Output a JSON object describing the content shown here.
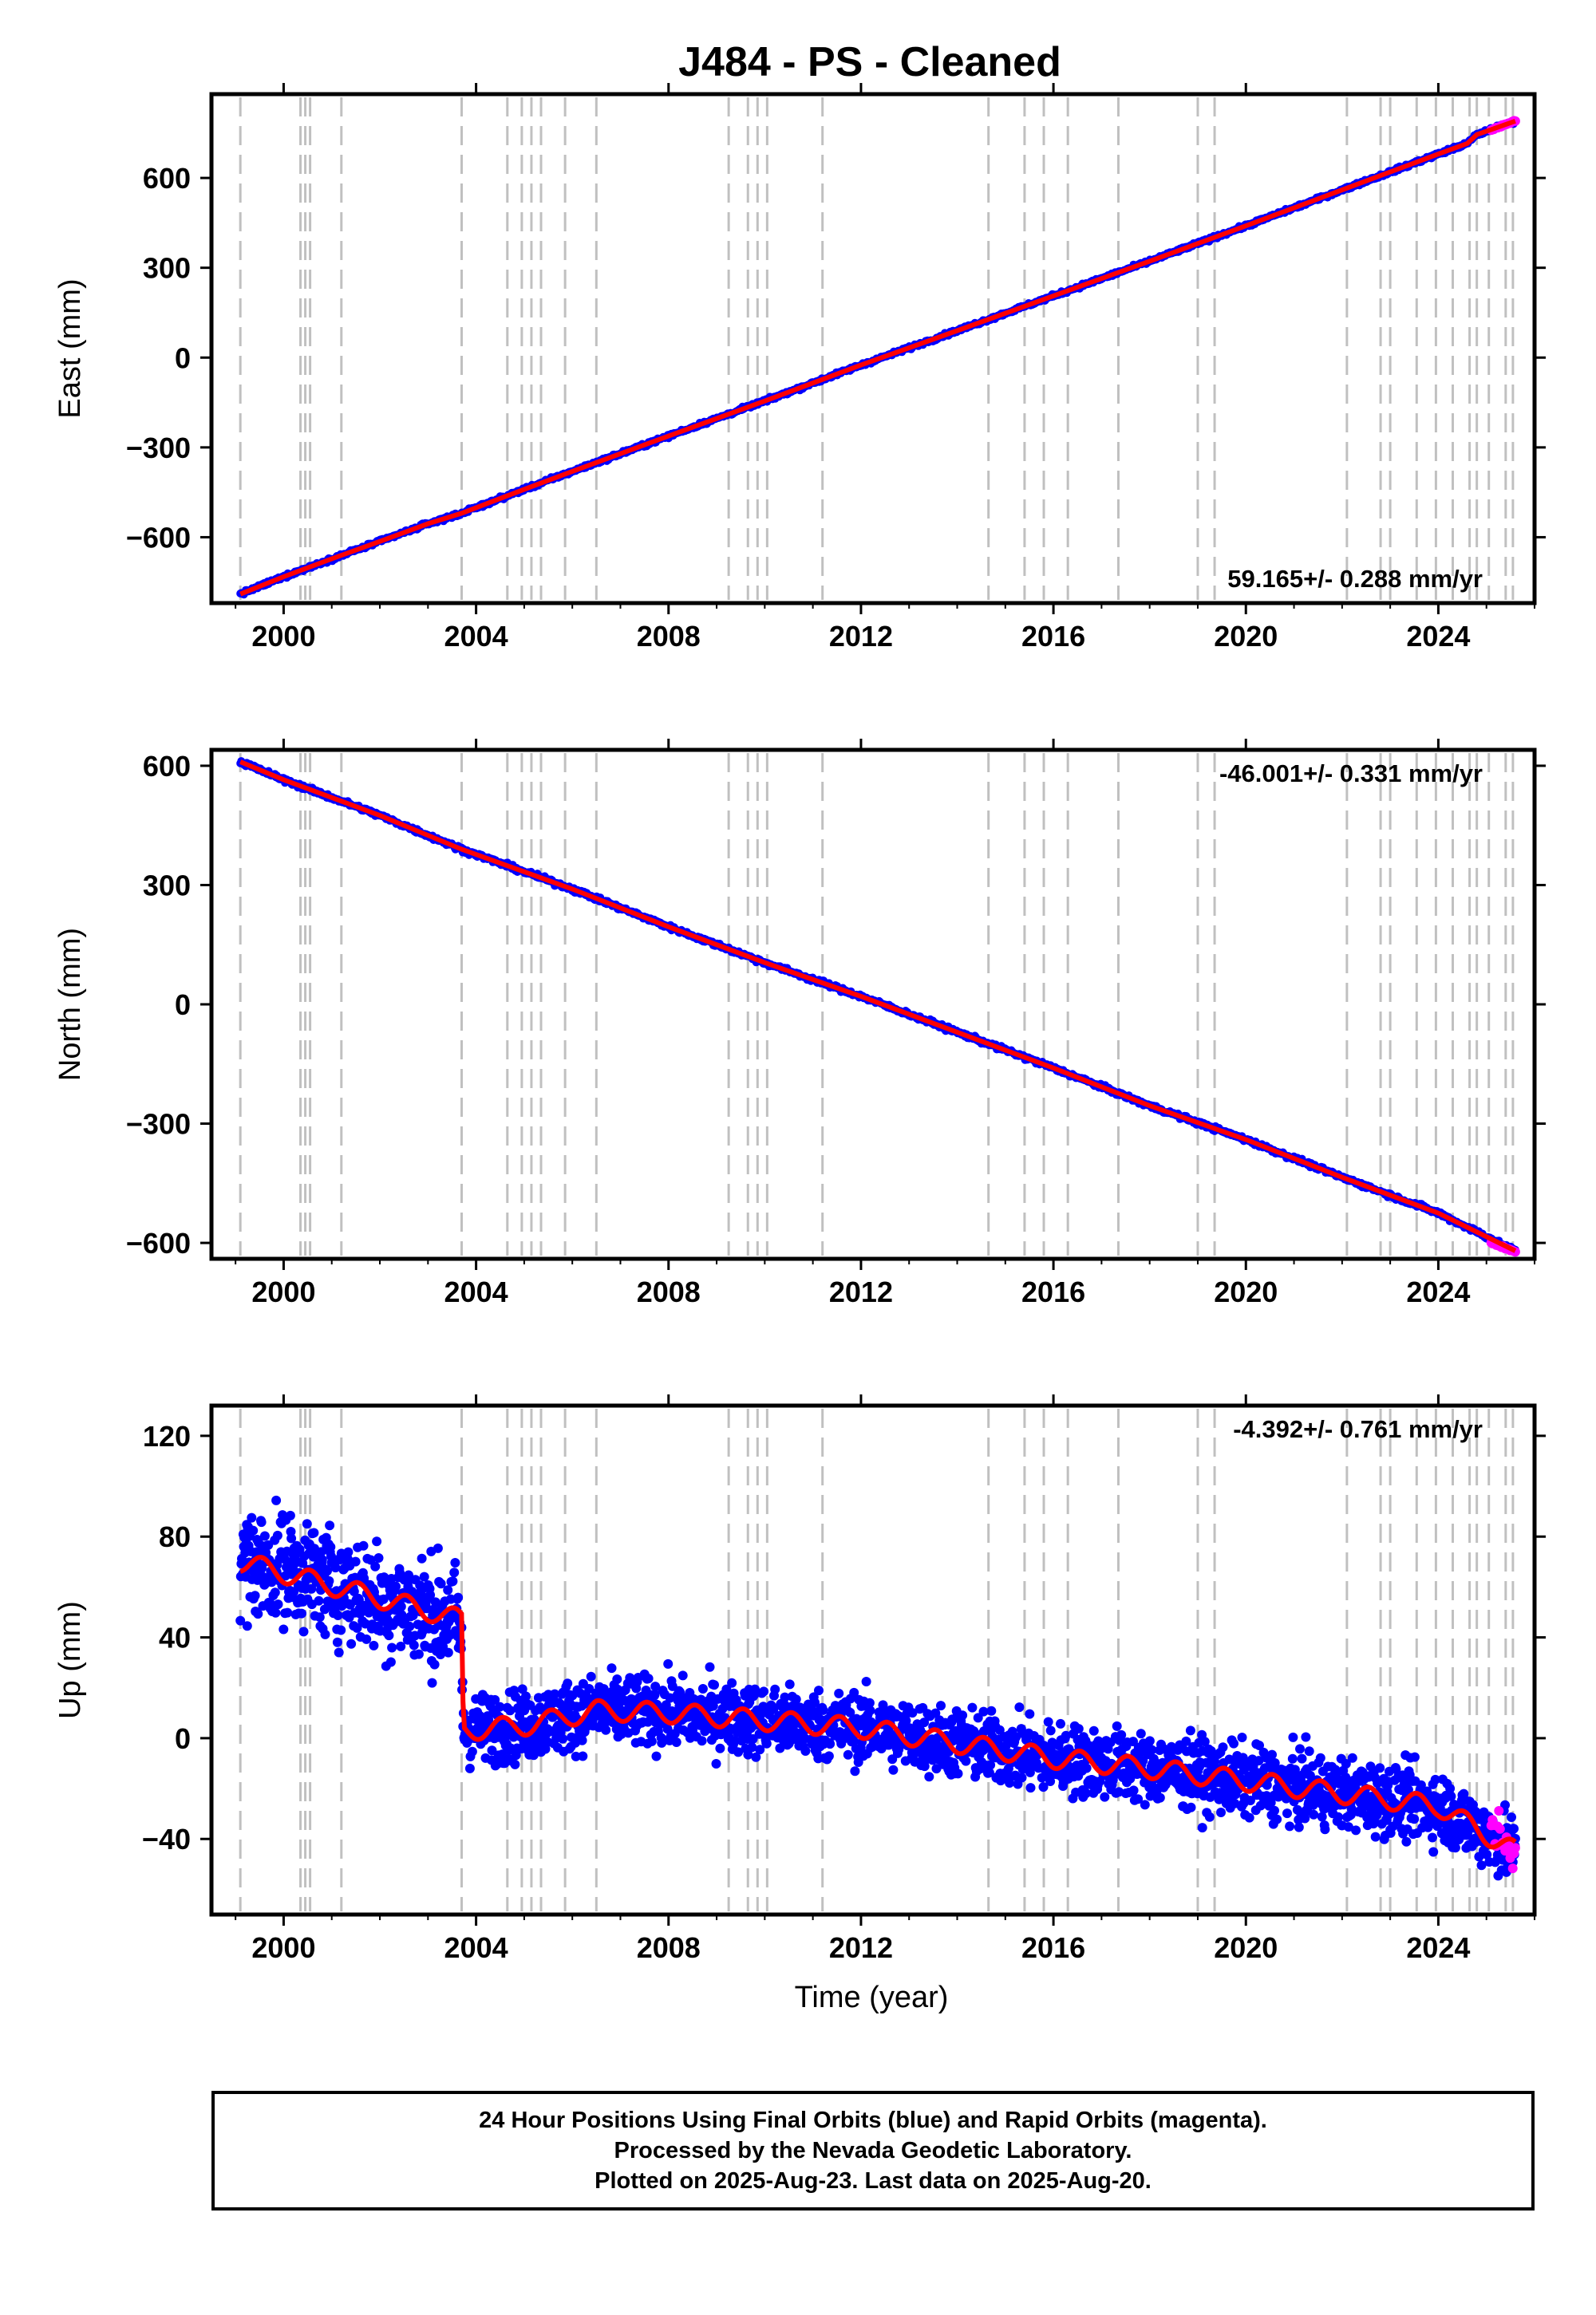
{
  "title": "J484  - PS - Cleaned",
  "xlabel": "Time (year)",
  "footer": {
    "line1": "24 Hour Positions Using Final Orbits (blue) and Rapid Orbits (magenta).",
    "line2": "Processed by the Nevada Geodetic Laboratory.",
    "line3": "Plotted on 2025-Aug-23. Last data on 2025-Aug-20."
  },
  "colors": {
    "final_orbits": "#0000ff",
    "rapid_orbits": "#ff00ff",
    "model": "#ff0000",
    "event_lines": "#c0c0c0",
    "axes": "#000000"
  },
  "chart_data": [
    {
      "type": "scatter",
      "ylabel": "East (mm)",
      "rate": "59.165+/- 0.288 mm/yr",
      "xlim": [
        1998.5,
        2026.0
      ],
      "ylim": [
        -820,
        880
      ],
      "x_ticks": [
        2000,
        2004,
        2008,
        2012,
        2016,
        2020,
        2024
      ],
      "y_ticks": [
        -600,
        -300,
        0,
        300,
        600
      ],
      "y_tick_labels": [
        "−600",
        "−300",
        "0",
        "300",
        "600"
      ],
      "series": [
        {
          "x": [
            1999.1,
            2000.0,
            2001.0,
            2002.0,
            2003.0,
            2003.7,
            2005.0,
            2006.0,
            2008.0,
            2010.0,
            2012.0,
            2014.0,
            2016.0,
            2018.0,
            2020.0,
            2022.0,
            2024.0,
            2024.6,
            2024.8,
            2025.6
          ],
          "y": [
            -790,
            -732,
            -672,
            -614,
            -555,
            -520,
            -440,
            -380,
            -262,
            -145,
            -25,
            90,
            206,
            322,
            440,
            560,
            680,
            715,
            745,
            790
          ]
        }
      ],
      "rapid_orbits": {
        "x": [
          2025.1,
          2025.6
        ],
        "y": [
          760,
          792
        ]
      }
    },
    {
      "type": "scatter",
      "ylabel": "North (mm)",
      "rate": "-46.001+/- 0.331 mm/yr",
      "xlim": [
        1998.5,
        2026.0
      ],
      "ylim": [
        -640,
        640
      ],
      "x_ticks": [
        2000,
        2004,
        2008,
        2012,
        2016,
        2020,
        2024
      ],
      "y_ticks": [
        -600,
        -300,
        0,
        300,
        600
      ],
      "y_tick_labels": [
        "−600",
        "−300",
        "0",
        "300",
        "600"
      ],
      "series": [
        {
          "x": [
            1999.1,
            2000.0,
            2002.0,
            2003.7,
            2006.0,
            2008.0,
            2010.0,
            2012.0,
            2014.0,
            2016.0,
            2018.0,
            2020.0,
            2022.0,
            2024.0,
            2025.6
          ],
          "y": [
            610,
            565,
            475,
            390,
            290,
            195,
            105,
            20,
            -70,
            -160,
            -255,
            -340,
            -435,
            -525,
            -620
          ]
        }
      ],
      "rapid_orbits": {
        "x": [
          2025.1,
          2025.6
        ],
        "y": [
          -600,
          -622
        ]
      }
    },
    {
      "type": "scatter",
      "ylabel": "Up (mm)",
      "rate": "-4.392+/- 0.761 mm/yr",
      "xlim": [
        1998.5,
        2026.0
      ],
      "ylim": [
        -70,
        132
      ],
      "x_ticks": [
        2000,
        2004,
        2008,
        2012,
        2016,
        2020,
        2024
      ],
      "y_ticks": [
        -40,
        0,
        40,
        80,
        120
      ],
      "y_tick_labels": [
        "−40",
        "0",
        "40",
        "80",
        "120"
      ],
      "series": [
        {
          "x": [
            1999.1,
            2000.0,
            2001.0,
            2002.0,
            2003.0,
            2003.65,
            2003.75,
            2005.0,
            2006.5,
            2008.0,
            2010.0,
            2012.0,
            2014.0,
            2016.0,
            2018.0,
            2020.0,
            2022.0,
            2024.0,
            2025.6
          ],
          "y": [
            70,
            68,
            62,
            55,
            50,
            47,
            3,
            5,
            11,
            10,
            7,
            4,
            -2,
            -8,
            -12,
            -17,
            -22,
            -27,
            -45
          ]
        }
      ],
      "model_steps": {
        "x": [
          1999.1,
          2000.5,
          2001.2,
          2003.7,
          2005.3,
          2006.4,
          2009.2,
          2014.5,
          2019.2,
          2024.6,
          2025.1,
          2025.6
        ],
        "y": [
          63,
          79,
          62,
          3,
          17,
          22,
          17,
          3,
          -10,
          -28,
          -40,
          -46
        ]
      },
      "rapid_orbits": {
        "x": [
          2025.1,
          2025.6
        ],
        "y": [
          -34,
          -45
        ]
      }
    }
  ],
  "event_lines_year": [
    1999.1,
    2000.35,
    2000.45,
    2000.55,
    2001.2,
    2003.7,
    2004.65,
    2004.95,
    2005.15,
    2005.35,
    2005.85,
    2006.5,
    2009.25,
    2009.65,
    2009.85,
    2010.05,
    2011.2,
    2014.65,
    2015.4,
    2015.8,
    2016.3,
    2017.35,
    2019.0,
    2019.35,
    2022.1,
    2022.8,
    2023.0,
    2023.55,
    2023.95,
    2024.3,
    2024.65,
    2024.8,
    2025.05,
    2025.4,
    2025.55
  ]
}
